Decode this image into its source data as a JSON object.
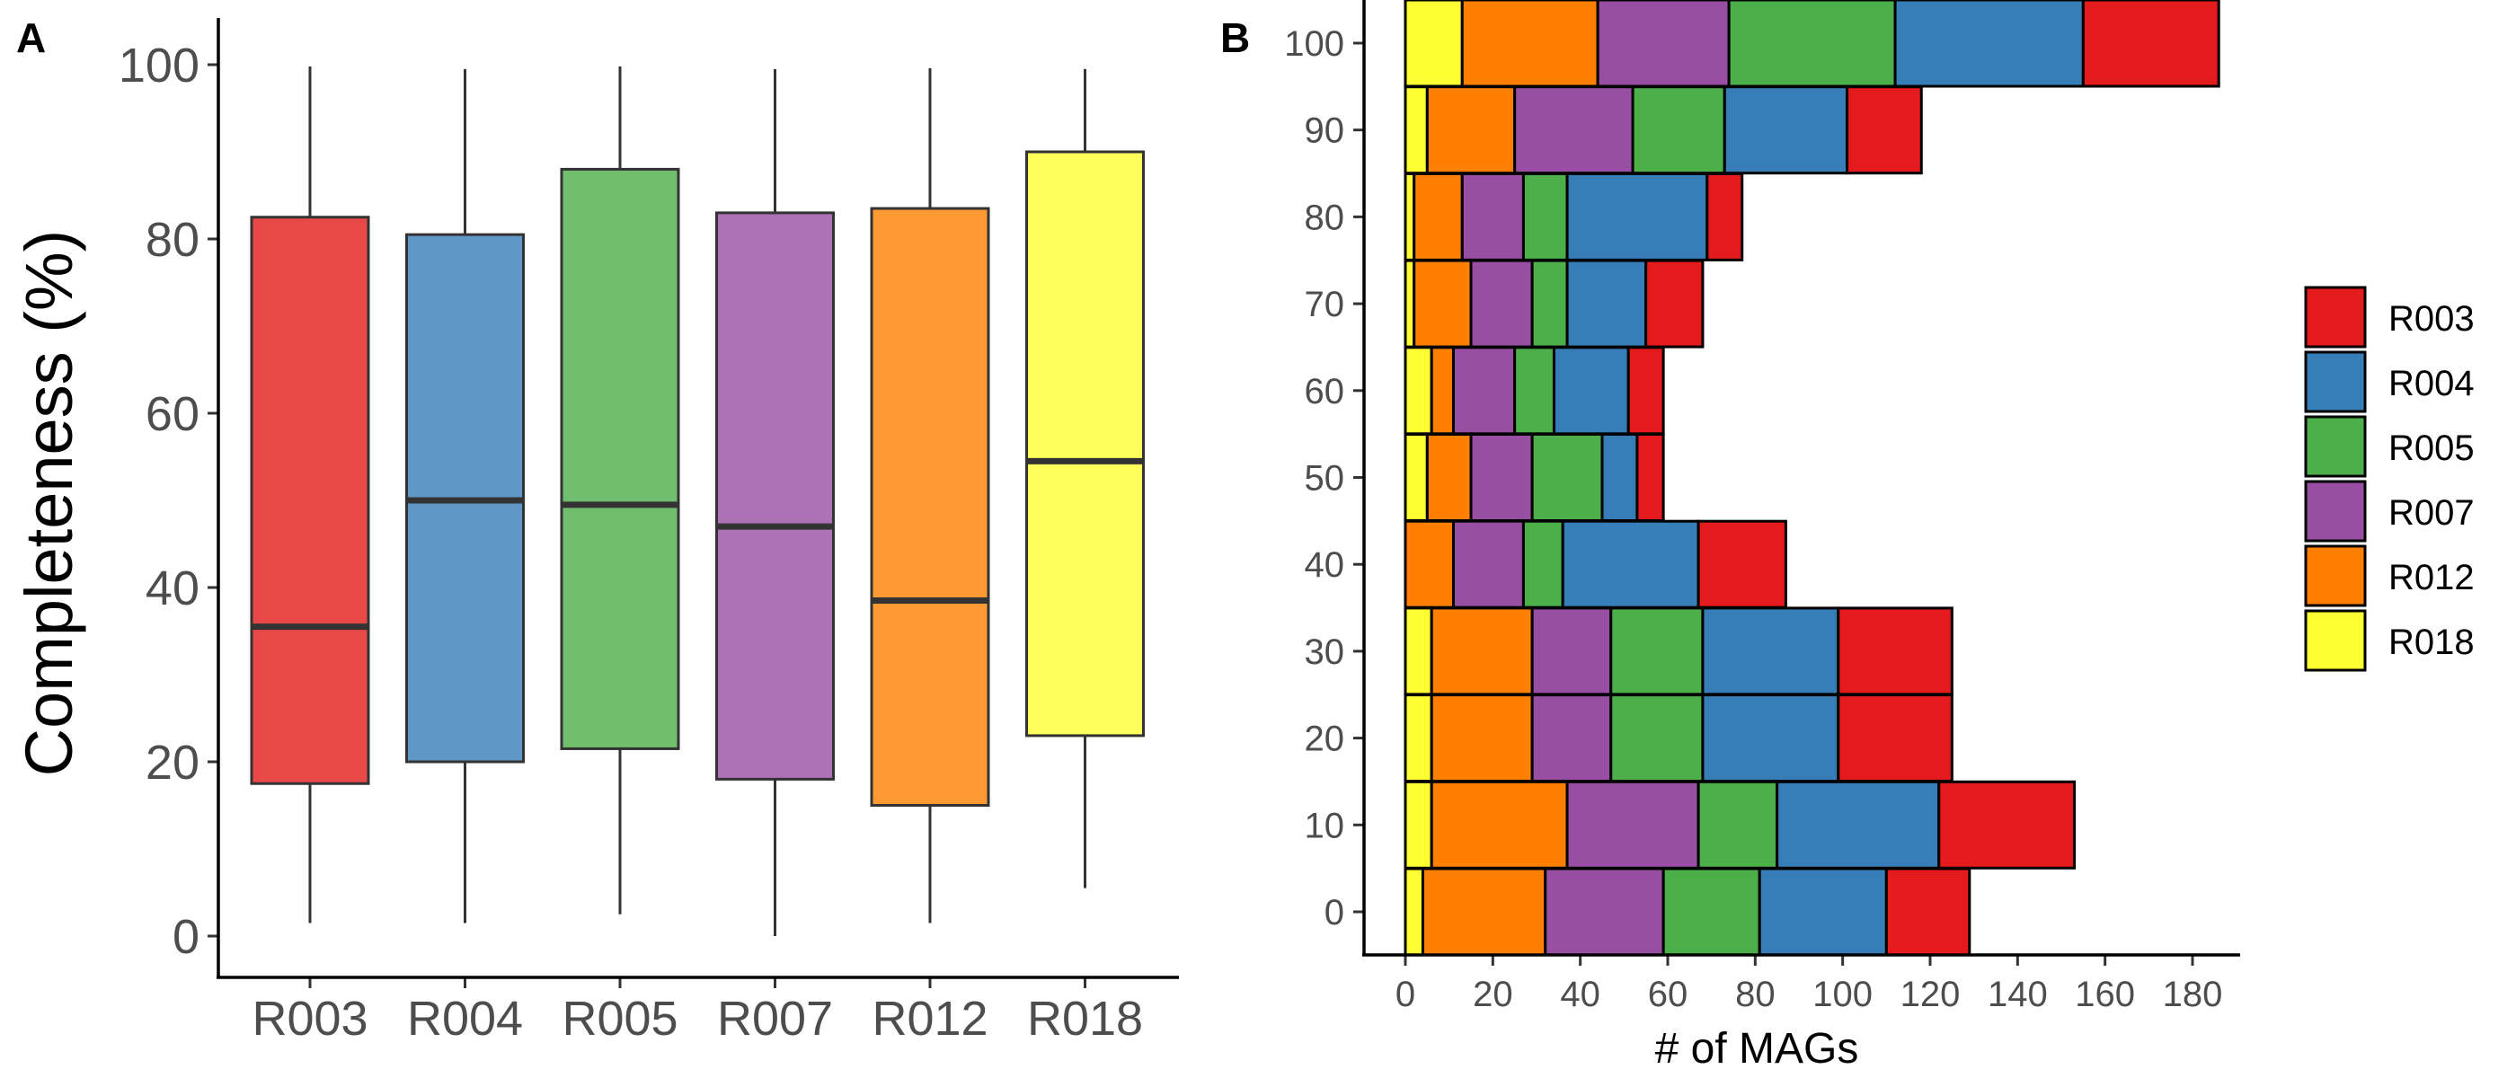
{
  "panels": {
    "a": {
      "letter": "A",
      "ylabel": "Completeness (%)",
      "yticks": [
        "0",
        "20",
        "40",
        "60",
        "80",
        "100"
      ]
    },
    "b": {
      "letter": "B",
      "xlabel": "# of MAGs",
      "xticks": [
        "0",
        "20",
        "40",
        "60",
        "80",
        "100",
        "120",
        "140",
        "160",
        "180"
      ],
      "yticks": [
        "0",
        "10",
        "20",
        "30",
        "40",
        "50",
        "60",
        "70",
        "80",
        "90",
        "100"
      ]
    }
  },
  "colors": {
    "R003": "#e41a1c",
    "R004": "#377eb8",
    "R005": "#4daf4a",
    "R007": "#984ea3",
    "R012": "#ff7f00",
    "R018": "#ffff33"
  },
  "chart_data": [
    {
      "type": "box",
      "ylabel": "Completeness (%)",
      "xlabel": "",
      "ylim": [
        0,
        100
      ],
      "categories": [
        "R003",
        "R004",
        "R005",
        "R007",
        "R012",
        "R018"
      ],
      "boxes": [
        {
          "name": "R003",
          "min": 1.5,
          "q1": 17.5,
          "median": 35.5,
          "q3": 82.5,
          "max": 99.8
        },
        {
          "name": "R004",
          "min": 1.5,
          "q1": 20.0,
          "median": 50.0,
          "q3": 80.5,
          "max": 99.5
        },
        {
          "name": "R005",
          "min": 2.5,
          "q1": 21.5,
          "median": 49.5,
          "q3": 88.0,
          "max": 99.8
        },
        {
          "name": "R007",
          "min": 0.0,
          "q1": 18.0,
          "median": 47.0,
          "q3": 83.0,
          "max": 99.5
        },
        {
          "name": "R012",
          "min": 1.5,
          "q1": 15.0,
          "median": 38.5,
          "q3": 83.5,
          "max": 99.6
        },
        {
          "name": "R018",
          "min": 5.5,
          "q1": 23.0,
          "median": 54.5,
          "q3": 90.0,
          "max": 99.5
        }
      ],
      "grid": false
    },
    {
      "type": "bar",
      "orientation": "horizontal",
      "stacked": true,
      "xlabel": "# of MAGs",
      "ylabel": "",
      "xlim": [
        0,
        190
      ],
      "ylim": [
        -3,
        105
      ],
      "categories": [
        0,
        10,
        20,
        30,
        40,
        50,
        60,
        70,
        80,
        90,
        100
      ],
      "stack_order": [
        "R018",
        "R012",
        "R007",
        "R005",
        "R004",
        "R003"
      ],
      "series": [
        {
          "name": "R018",
          "values": [
            4,
            6,
            6,
            6,
            0,
            5,
            6,
            2,
            2,
            5,
            13
          ]
        },
        {
          "name": "R012",
          "values": [
            28,
            31,
            23,
            23,
            11,
            10,
            5,
            13,
            11,
            20,
            31
          ]
        },
        {
          "name": "R007",
          "values": [
            27,
            30,
            18,
            18,
            16,
            14,
            14,
            14,
            14,
            27,
            30
          ]
        },
        {
          "name": "R005",
          "values": [
            22,
            18,
            21,
            21,
            9,
            16,
            9,
            8,
            10,
            21,
            38
          ]
        },
        {
          "name": "R004",
          "values": [
            29,
            37,
            31,
            31,
            31,
            8,
            17,
            18,
            32,
            28,
            43
          ]
        },
        {
          "name": "R003",
          "values": [
            19,
            31,
            26,
            26,
            20,
            6,
            8,
            13,
            8,
            17,
            31
          ]
        }
      ],
      "legend": {
        "position": "right",
        "entries": [
          "R003",
          "R004",
          "R005",
          "R007",
          "R012",
          "R018"
        ]
      },
      "grid": false
    }
  ]
}
